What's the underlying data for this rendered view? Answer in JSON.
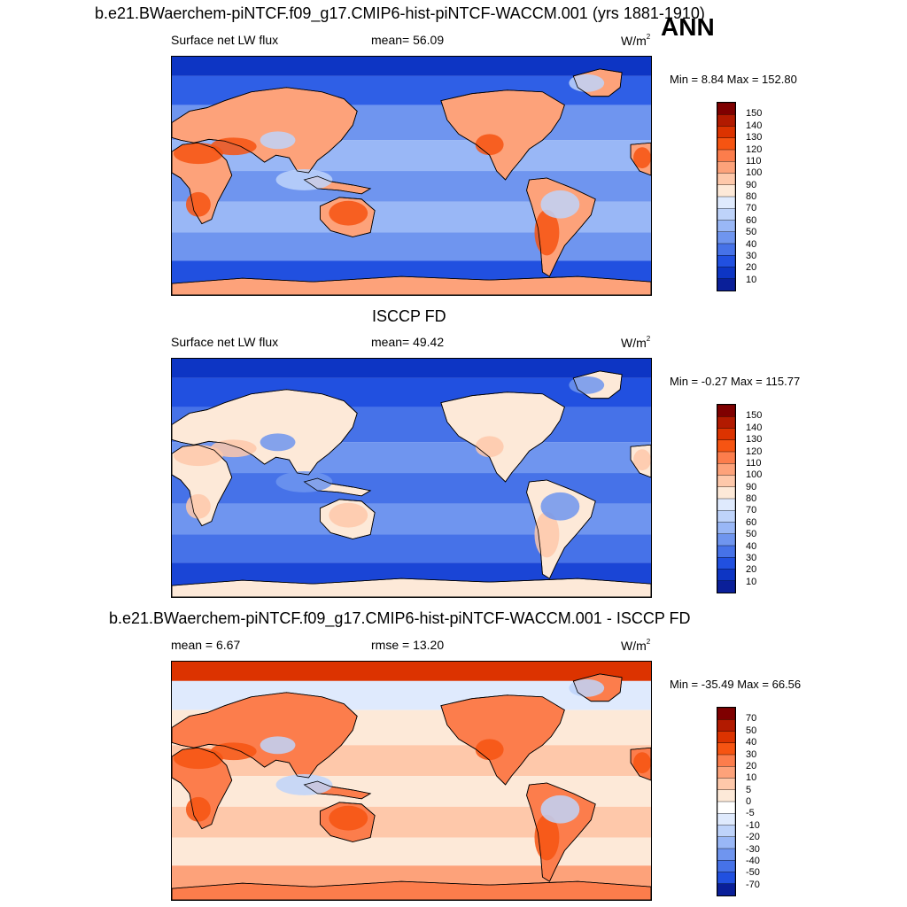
{
  "panels": [
    {
      "title": "b.e21.BWaerchem-piNTCF.f09_g17.CMIP6-hist-piNTCF-WACCM.001 (yrs 1881-1910)",
      "left_label": "Surface net LW flux",
      "center_label": "mean=  56.09",
      "units_base": "W/m",
      "units_exp": "2",
      "minmax": "Min =   8.84 Max = 152.80",
      "colorbar_ticks": [
        "150",
        "140",
        "130",
        "120",
        "110",
        "100",
        "90",
        "80",
        "70",
        "60",
        "50",
        "40",
        "30",
        "20",
        "10"
      ],
      "colorbar_colors": [
        "#7f0000",
        "#b21a00",
        "#dc3300",
        "#f65412",
        "#fc7d4c",
        "#fda27a",
        "#fec8aa",
        "#fde9d8",
        "#dfeafd",
        "#bed3fa",
        "#99b7f6",
        "#6f95ef",
        "#4672e8",
        "#2150e0",
        "#0d35c4",
        "#0a1f99"
      ]
    },
    {
      "title": "ISCCP FD",
      "left_label": "Surface net LW flux",
      "center_label": "mean=  49.42",
      "units_base": "W/m",
      "units_exp": "2",
      "minmax": "Min =  -0.27 Max = 115.77",
      "colorbar_ticks": [
        "150",
        "140",
        "130",
        "120",
        "110",
        "100",
        "90",
        "80",
        "70",
        "60",
        "50",
        "40",
        "30",
        "20",
        "10"
      ],
      "colorbar_colors": [
        "#7f0000",
        "#b21a00",
        "#dc3300",
        "#f65412",
        "#fc7d4c",
        "#fda27a",
        "#fec8aa",
        "#fde9d8",
        "#dfeafd",
        "#bed3fa",
        "#99b7f6",
        "#6f95ef",
        "#4672e8",
        "#2150e0",
        "#0d35c4",
        "#0a1f99"
      ]
    },
    {
      "title": "b.e21.BWaerchem-piNTCF.f09_g17.CMIP6-hist-piNTCF-WACCM.001 - ISCCP FD",
      "left_label": "mean =   6.67",
      "center_label": "rmse =  13.20",
      "units_base": "W/m",
      "units_exp": "2",
      "minmax": "Min = -35.49 Max =  66.56",
      "colorbar_ticks": [
        "70",
        "50",
        "40",
        "30",
        "20",
        "10",
        "5",
        "0",
        "-5",
        "-10",
        "-20",
        "-30",
        "-40",
        "-50",
        "-70"
      ],
      "colorbar_colors": [
        "#7f0000",
        "#b21a00",
        "#dc3300",
        "#f65412",
        "#fc7d4c",
        "#fda27a",
        "#fec8aa",
        "#fde9d8",
        "#ffffff",
        "#dfeafd",
        "#bed3fa",
        "#99b7f6",
        "#6f95ef",
        "#4672e8",
        "#2150e0",
        "#0a1f99"
      ]
    }
  ],
  "season": "ANN",
  "map_palettes": {
    "model": {
      "ocean": "#6f95ef",
      "ocean_south": "#2150e0",
      "ocean_north": "#2f5fe6",
      "subtropical": "#99b7f6",
      "land_warm": "#f65412",
      "land_mid": "#fda27a",
      "land_cool": "#bed3fa",
      "polar": "#0d35c4",
      "coast": "#000000"
    },
    "obs": {
      "ocean": "#4672e8",
      "ocean_south": "#1a45d6",
      "ocean_north": "#2150e0",
      "subtropical": "#6f95ef",
      "land_warm": "#fec8aa",
      "land_mid": "#fde9d8",
      "land_cool": "#6f95ef",
      "polar": "#0d35c4",
      "coast": "#000000"
    },
    "diff": {
      "ocean": "#fde9d8",
      "ocean_south": "#fda27a",
      "ocean_north": "#dfeafd",
      "subtropical": "#fec8aa",
      "land_warm": "#f65412",
      "land_mid": "#fc7d4c",
      "land_cool": "#bed3fa",
      "polar": "#dc3300",
      "coast": "#000000"
    }
  }
}
